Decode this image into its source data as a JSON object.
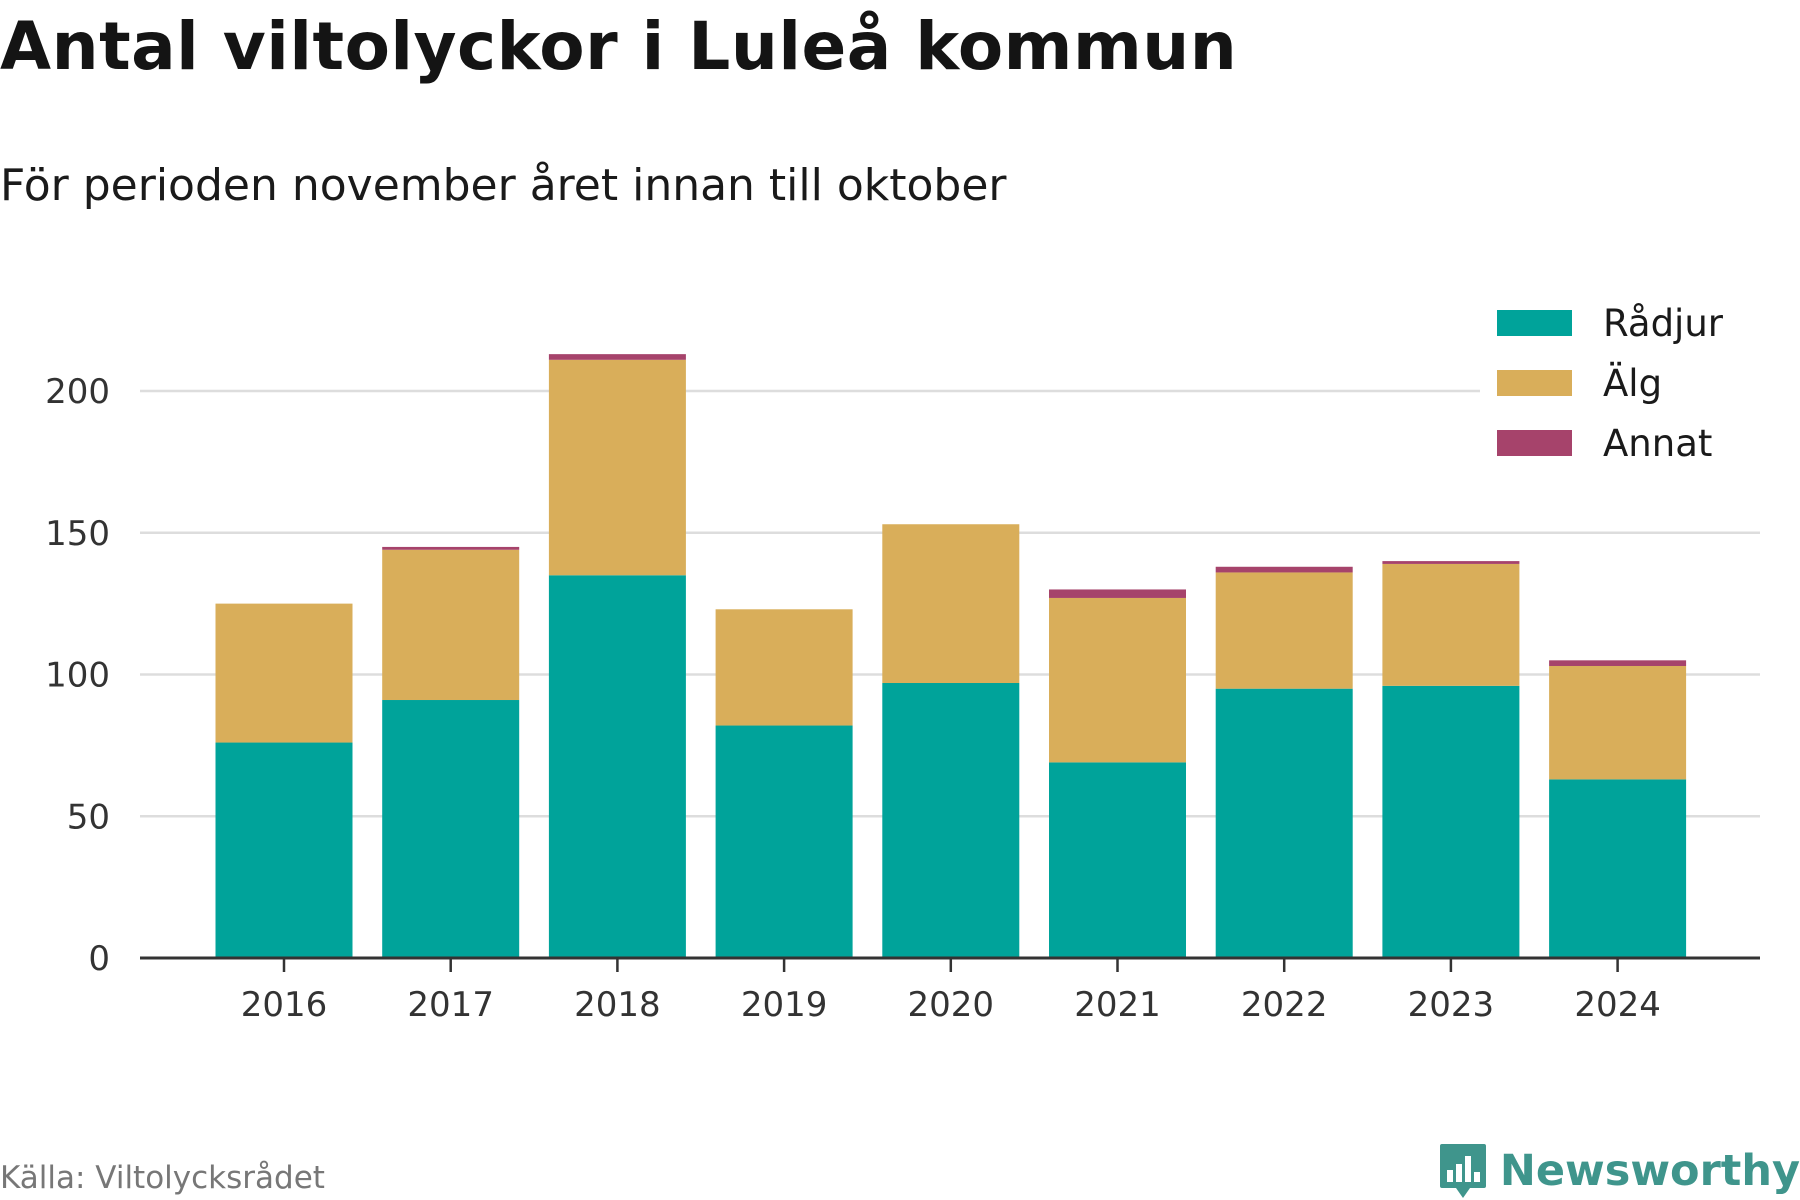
{
  "chart_data": {
    "type": "bar",
    "stacked": true,
    "title": "Antal viltolyckor i Luleå kommun",
    "subtitle": "För perioden november året innan till oktober",
    "categories": [
      "2016",
      "2017",
      "2018",
      "2019",
      "2020",
      "2021",
      "2022",
      "2023",
      "2024"
    ],
    "series": [
      {
        "name": "Rådjur",
        "color": "#00a39a",
        "values": [
          76,
          91,
          135,
          82,
          97,
          69,
          95,
          96,
          63
        ]
      },
      {
        "name": "Älg",
        "color": "#d9ae5a",
        "values": [
          49,
          53,
          76,
          41,
          56,
          58,
          41,
          43,
          40
        ]
      },
      {
        "name": "Annat",
        "color": "#a6436b",
        "values": [
          0,
          1,
          2,
          0,
          0,
          3,
          2,
          1,
          2
        ]
      }
    ],
    "ylim": [
      0,
      220
    ],
    "yticks": [
      0,
      50,
      100,
      150,
      200
    ],
    "grid": true,
    "legend_position": "top-right"
  },
  "source": "Källa: Viltolycksrådet",
  "brand": {
    "name": "Newsworthy",
    "color": "#3f958c",
    "icon": "newsworthy-logo-icon"
  }
}
